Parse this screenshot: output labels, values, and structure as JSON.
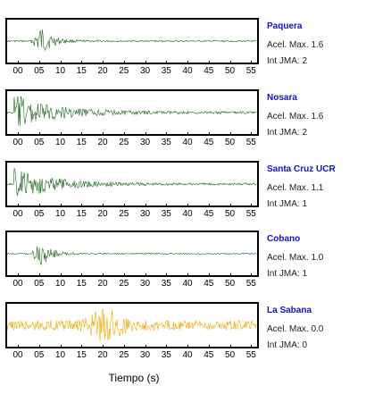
{
  "x_axis": {
    "ticks": [
      "00",
      "05",
      "10",
      "15",
      "20",
      "25",
      "30",
      "35",
      "40",
      "45",
      "50",
      "55"
    ],
    "label": "Tiempo (s)"
  },
  "stations": [
    {
      "name": "Paquera",
      "acel_label": "Acel. Max. 1.6",
      "int_label": "Int JMA: 2",
      "color": "#1a6b1a",
      "envelope": "late-burst",
      "burst_time": 5,
      "amplitude": 1.0
    },
    {
      "name": "Nosara",
      "acel_label": "Acel. Max. 1.6",
      "int_label": "Int JMA: 2",
      "color": "#1a6b1a",
      "envelope": "decay",
      "burst_time": 0,
      "amplitude": 1.0
    },
    {
      "name": "Santa Cruz UCR",
      "acel_label": "Acel. Max. 1.1",
      "int_label": "Int JMA: 1",
      "color": "#1a6b1a",
      "envelope": "decay",
      "burst_time": 0,
      "amplitude": 0.9
    },
    {
      "name": "Cobano",
      "acel_label": "Acel. Max. 1.0",
      "int_label": "Int JMA: 1",
      "color": "#1a6b1a",
      "envelope": "late-burst",
      "burst_time": 5,
      "amplitude": 0.85
    },
    {
      "name": "La Sabana",
      "acel_label": "Acel. Max. 0.0",
      "int_label": "Int JMA: 0",
      "color": "#f0a800",
      "envelope": "noise",
      "burst_time": 21,
      "amplitude": 0.9
    }
  ]
}
